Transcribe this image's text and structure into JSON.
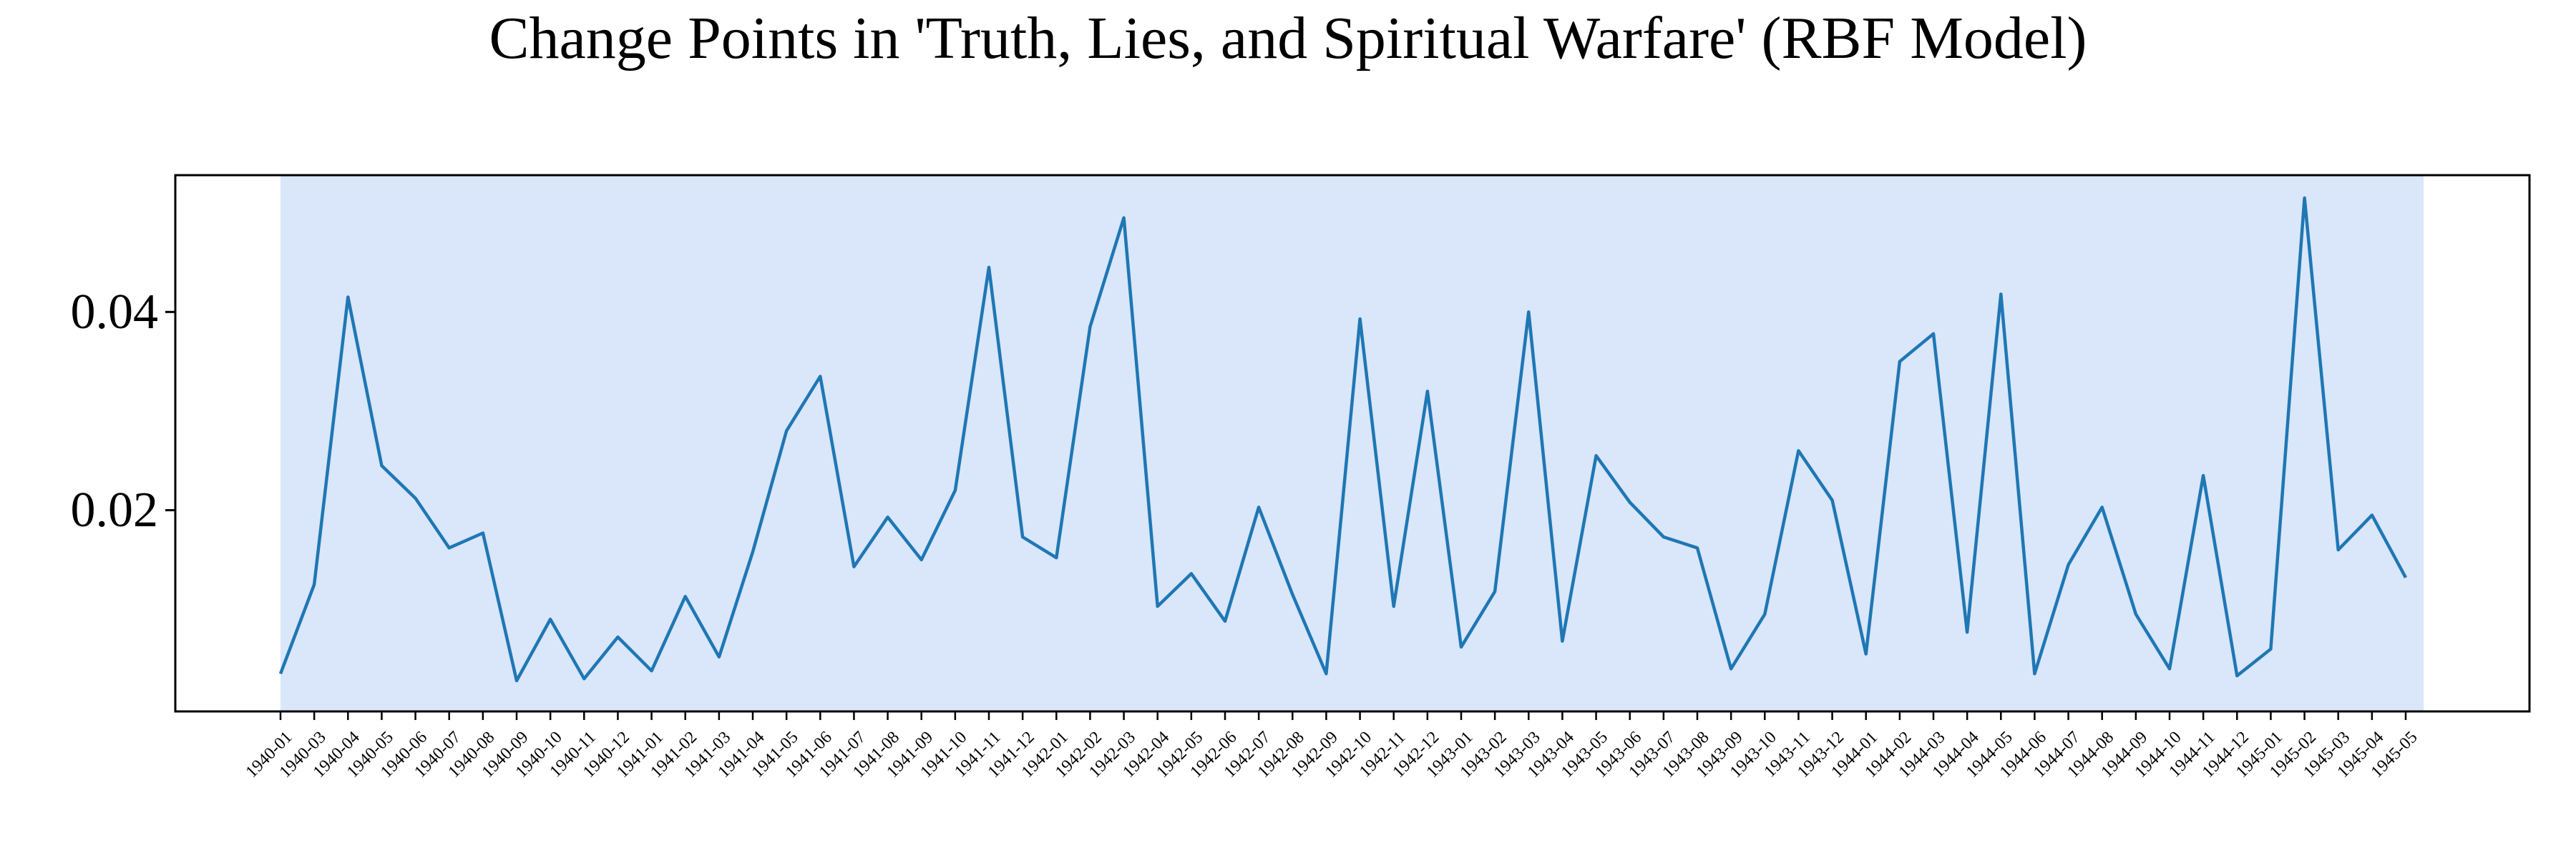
{
  "chart_data": {
    "type": "line",
    "title": "Change Points in 'Truth, Lies, and Spiritual Warfare' (RBF Model)",
    "xlabel": "",
    "ylabel": "",
    "x": [
      "1940-01",
      "1940-03",
      "1940-04",
      "1940-05",
      "1940-06",
      "1940-07",
      "1940-08",
      "1940-09",
      "1940-10",
      "1940-11",
      "1940-12",
      "1941-01",
      "1941-02",
      "1941-03",
      "1941-04",
      "1941-05",
      "1941-06",
      "1941-07",
      "1941-08",
      "1941-09",
      "1941-10",
      "1941-11",
      "1941-12",
      "1942-01",
      "1942-02",
      "1942-03",
      "1942-04",
      "1942-05",
      "1942-06",
      "1942-07",
      "1942-08",
      "1942-09",
      "1942-10",
      "1942-11",
      "1942-12",
      "1943-01",
      "1943-02",
      "1943-03",
      "1943-04",
      "1943-05",
      "1943-06",
      "1943-07",
      "1943-08",
      "1943-09",
      "1943-10",
      "1943-11",
      "1943-12",
      "1944-01",
      "1944-02",
      "1944-03",
      "1944-04",
      "1944-05",
      "1944-06",
      "1944-07",
      "1944-08",
      "1944-09",
      "1944-10",
      "1944-11",
      "1944-12",
      "1945-01",
      "1945-02",
      "1945-03",
      "1945-04",
      "1945-05"
    ],
    "y": [
      0.0035,
      0.0125,
      0.0415,
      0.0245,
      0.0212,
      0.0162,
      0.0177,
      0.0028,
      0.009,
      0.003,
      0.0072,
      0.0038,
      0.0113,
      0.0052,
      0.0158,
      0.028,
      0.0335,
      0.0143,
      0.0193,
      0.015,
      0.022,
      0.0445,
      0.0173,
      0.0152,
      0.0385,
      0.0495,
      0.0103,
      0.0136,
      0.0088,
      0.0203,
      0.0115,
      0.0035,
      0.0393,
      0.0103,
      0.032,
      0.0062,
      0.0118,
      0.04,
      0.0068,
      0.0255,
      0.0208,
      0.0173,
      0.0162,
      0.004,
      0.0095,
      0.026,
      0.021,
      0.0055,
      0.035,
      0.0378,
      0.0077,
      0.0418,
      0.0035,
      0.0145,
      0.0203,
      0.0095,
      0.004,
      0.0235,
      0.0033,
      0.006,
      0.0515,
      0.016,
      0.0195,
      0.0132
    ],
    "yticks": [
      0.02,
      0.04
    ],
    "ytick_labels": [
      "0.02",
      "0.04"
    ],
    "ylim": [
      -0.0003,
      0.0538
    ],
    "grid": false,
    "legend": "none",
    "colors": {
      "line": "#1f77b4",
      "shaded_region": "#dae6fa",
      "axes": "#000000"
    },
    "shaded_region": {
      "from": "1940-01",
      "to": "1945-05"
    }
  }
}
